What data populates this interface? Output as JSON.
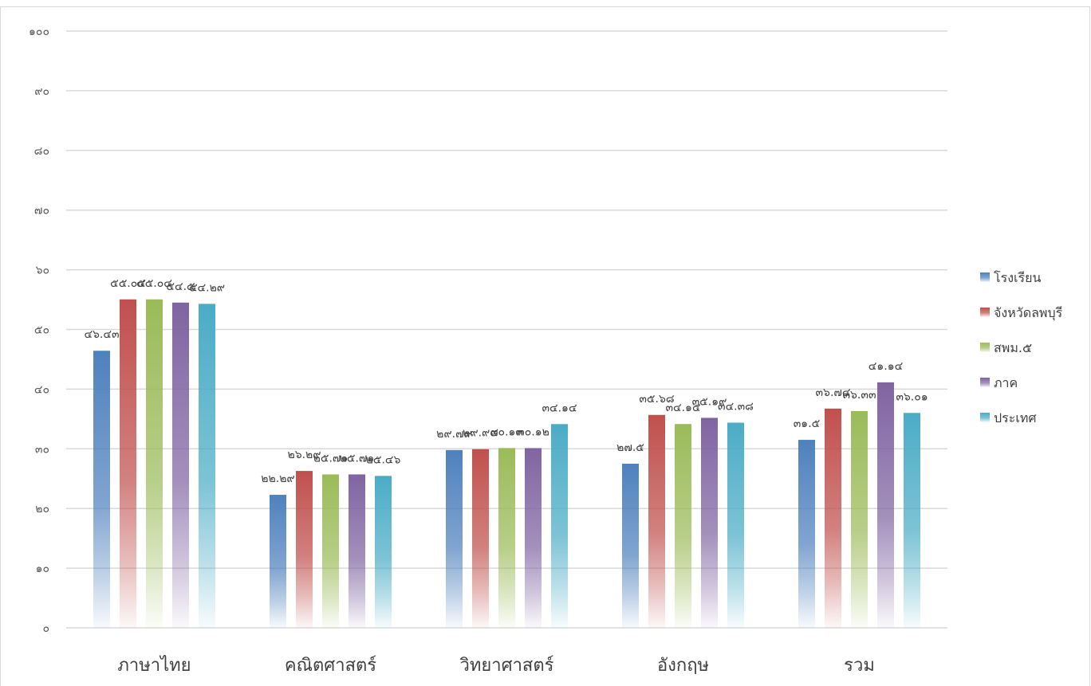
{
  "chart_data": {
    "type": "bar",
    "title": "",
    "xlabel": "",
    "ylabel": "",
    "ylim": [
      0,
      100
    ],
    "y_ticks": [
      "๐",
      "๑๐",
      "๒๐",
      "๓๐",
      "๔๐",
      "๕๐",
      "๖๐",
      "๗๐",
      "๘๐",
      "๙๐",
      "๑๐๐"
    ],
    "y_tick_values": [
      0,
      10,
      20,
      30,
      40,
      50,
      60,
      70,
      80,
      90,
      100
    ],
    "grid": true,
    "legend_position": "right",
    "categories": [
      "ภาษาไทย",
      "คณิตศาสตร์",
      "วิทยาศาสตร์",
      "อังกฤษ",
      "รวม"
    ],
    "series": [
      {
        "name": "โรงเรียน",
        "color": "#4f81bd",
        "values": [
          46.43,
          22.29,
          29.79,
          27.5,
          31.5
        ],
        "labels": [
          "๔๖.๔๓",
          "๒๒.๒๙",
          "๒๙.๗๙",
          "๒๗.๕",
          "๓๑.๕"
        ]
      },
      {
        "name": "จังหวัดลพบุรี",
        "color": "#c0504d",
        "values": [
          55.04,
          26.29,
          29.94,
          35.68,
          36.74
        ],
        "labels": [
          "๕๕.๐๔",
          "๒๖.๒๙",
          "๒๙.๙๔",
          "๓๕.๖๘",
          "๓๖.๗๔"
        ]
      },
      {
        "name": "สพม.๕",
        "color": "#9bbb59",
        "values": [
          55.04,
          25.71,
          30.13,
          34.15,
          36.33
        ],
        "labels": [
          "๕๕.๐๔",
          "๒๕.๗๑",
          "๓๐.๑๓",
          "๓๔.๑๕",
          "๓๖.๓๓"
        ]
      },
      {
        "name": "ภาค",
        "color": "#8064a2",
        "values": [
          54.5,
          25.71,
          30.12,
          35.19,
          41.14
        ],
        "labels": [
          "๕๔.๕",
          "๒๕.๗๑",
          "๓๐.๑๒",
          "๓๕.๑๙",
          "๔๑.๑๔"
        ]
      },
      {
        "name": "ประเทศ",
        "color": "#4bacc6",
        "values": [
          54.29,
          25.46,
          34.14,
          34.38,
          36.01
        ],
        "labels": [
          "๕๔.๒๙",
          "๒๕.๔๖",
          "๓๔.๑๔",
          "๓๔.๓๘",
          "๓๖.๐๑"
        ]
      }
    ]
  }
}
